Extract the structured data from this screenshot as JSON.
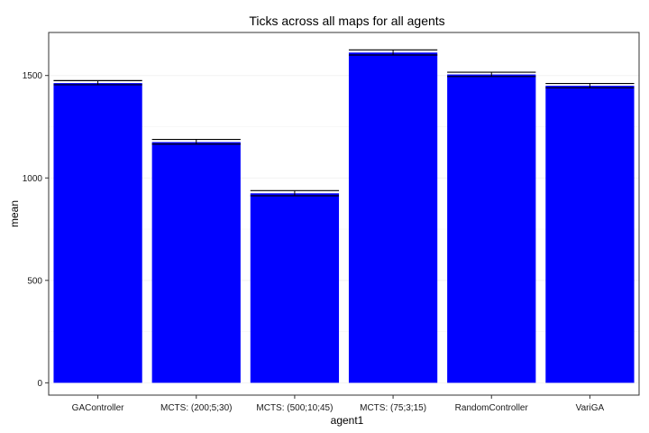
{
  "chart_data": {
    "type": "bar",
    "title": "Ticks across all maps for all agents",
    "xlabel": "agent1",
    "ylabel": "mean",
    "categories": [
      "GAController",
      "MCTS: (200;5;30)",
      "MCTS: (500;10;45)",
      "MCTS: (75;3;15)",
      "RandomController",
      "VariGA"
    ],
    "values": [
      1463,
      1175,
      925,
      1612,
      1505,
      1450
    ],
    "error_low": [
      1455,
      1165,
      913,
      1600,
      1495,
      1440
    ],
    "error_high": [
      1475,
      1188,
      938,
      1625,
      1516,
      1461
    ],
    "ylim": [
      -60,
      1710
    ],
    "yticks": [
      0,
      500,
      1000,
      1500
    ],
    "ytick_labels": [
      "0",
      "500",
      "1000",
      "1500"
    ],
    "grid": true,
    "legend": "none",
    "colors": {
      "bar": "#0000ff",
      "error_bar": "#000000",
      "grid": "#f2f2f2",
      "border": "#333333"
    }
  }
}
